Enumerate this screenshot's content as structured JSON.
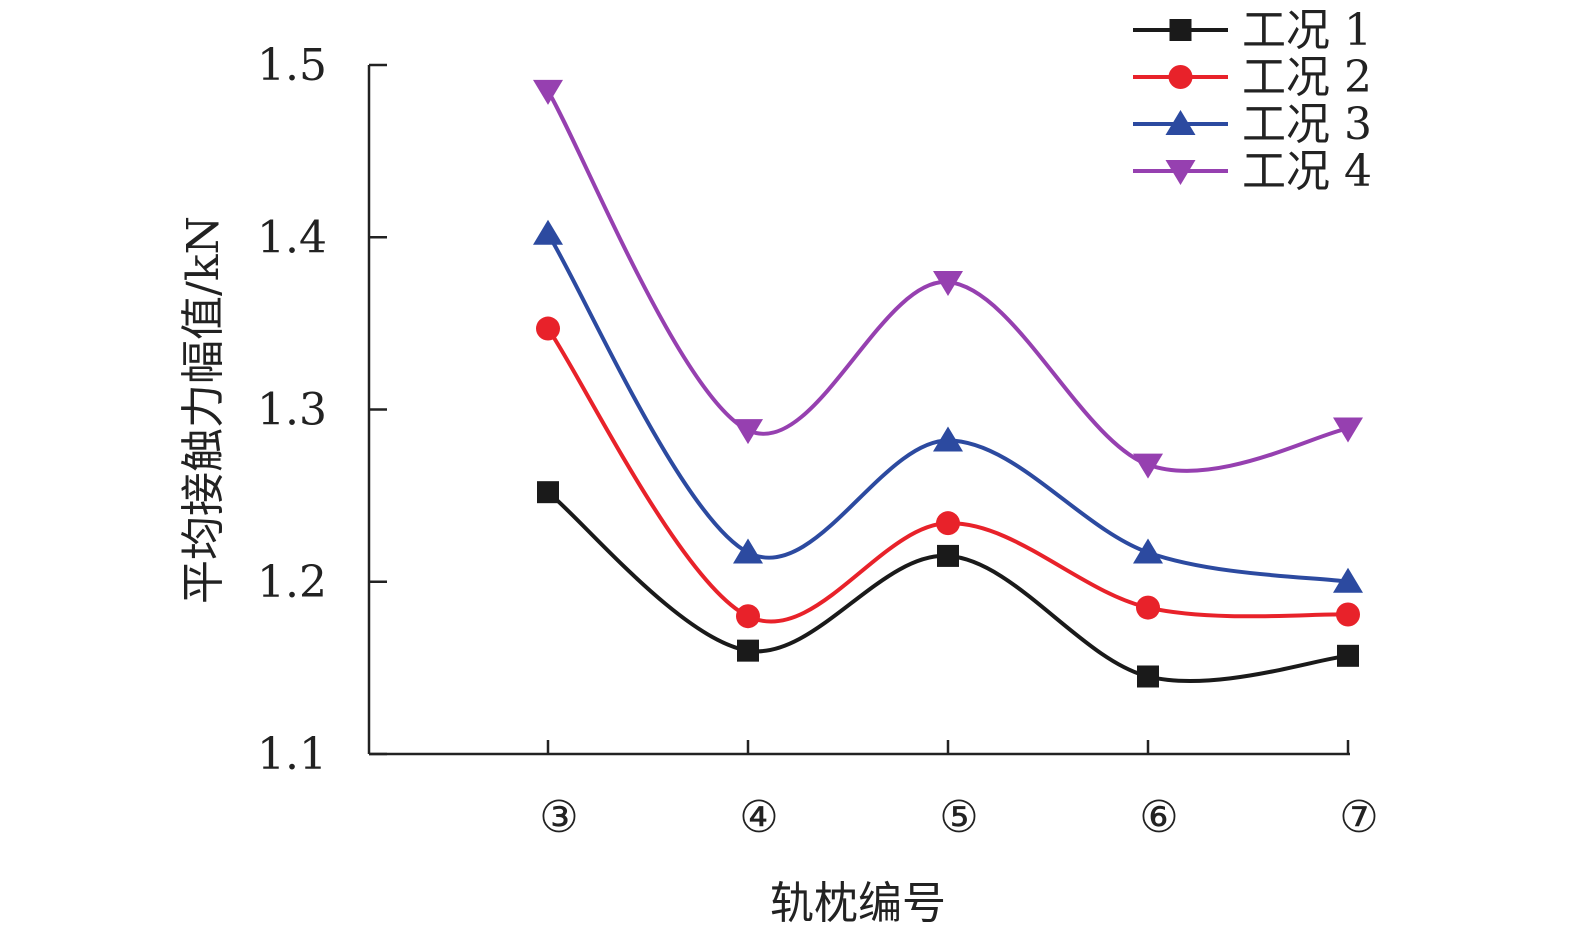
{
  "chart_data": {
    "type": "line",
    "title": "",
    "xlabel": "轨枕编号",
    "ylabel": "平均接触力幅值/kN",
    "categories": [
      "③",
      "④",
      "⑤",
      "⑥",
      "⑦"
    ],
    "ylim": [
      1.1,
      1.5
    ],
    "yticks": [
      "1.1",
      "1.2",
      "1.3",
      "1.4",
      "1.5"
    ],
    "legend_position": "top-right",
    "series": [
      {
        "name": "工况 1",
        "color": "#1a1a1a",
        "marker": "square",
        "values": [
          1.252,
          1.16,
          1.215,
          1.145,
          1.157
        ]
      },
      {
        "name": "工况 2",
        "color": "#e8222a",
        "marker": "circle",
        "values": [
          1.347,
          1.18,
          1.234,
          1.185,
          1.181
        ]
      },
      {
        "name": "工况 3",
        "color": "#2c4aa0",
        "marker": "triangle-up",
        "values": [
          1.402,
          1.217,
          1.282,
          1.217,
          1.2
        ]
      },
      {
        "name": "工况 4",
        "color": "#9640b0",
        "marker": "triangle-down",
        "values": [
          1.485,
          1.288,
          1.374,
          1.268,
          1.289
        ]
      }
    ]
  }
}
